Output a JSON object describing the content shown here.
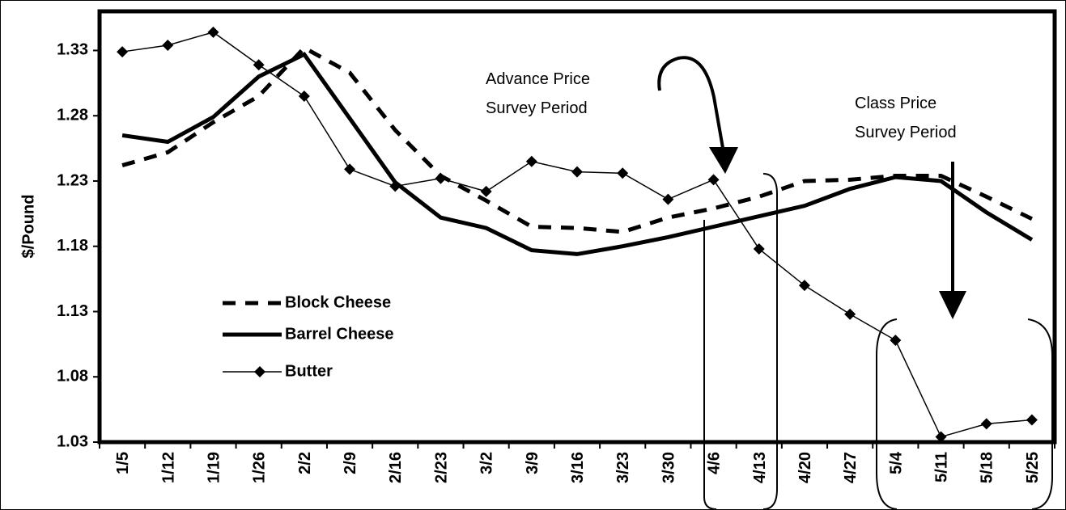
{
  "chart_data": {
    "type": "line",
    "y_label": "$/Pound",
    "categories": [
      "1/5",
      "1/12",
      "1/19",
      "1/26",
      "2/2",
      "2/9",
      "2/16",
      "2/23",
      "3/2",
      "3/9",
      "3/16",
      "3/23",
      "3/30",
      "4/6",
      "4/13",
      "4/20",
      "4/27",
      "5/4",
      "5/11",
      "5/18",
      "5/25"
    ],
    "series": [
      {
        "name": "Block Cheese",
        "color": "#000000",
        "style": "dashed",
        "values": [
          1.242,
          1.252,
          1.275,
          1.295,
          1.332,
          1.313,
          1.269,
          1.234,
          1.215,
          1.195,
          1.194,
          1.191,
          1.202,
          1.209,
          1.218,
          1.23,
          1.231,
          1.234,
          1.234,
          1.218,
          1.201
        ]
      },
      {
        "name": "Barrel Cheese",
        "color": "#000000",
        "style": "solid",
        "values": [
          1.265,
          1.26,
          1.279,
          1.31,
          1.327,
          1.278,
          1.229,
          1.202,
          1.194,
          1.177,
          1.174,
          1.18,
          1.187,
          1.195,
          1.203,
          1.211,
          1.224,
          1.233,
          1.23,
          1.206,
          1.185
        ]
      },
      {
        "name": "Butter",
        "color": "#000000",
        "style": "markers",
        "values": [
          1.329,
          1.334,
          1.344,
          1.319,
          1.295,
          1.239,
          1.226,
          1.232,
          1.222,
          1.245,
          1.237,
          1.236,
          1.216,
          1.231,
          1.178,
          1.15,
          1.128,
          1.108,
          1.034,
          1.044,
          1.047
        ]
      }
    ],
    "ylim": [
      1.03,
      1.36
    ],
    "yticks": [
      1.03,
      1.08,
      1.13,
      1.18,
      1.23,
      1.28,
      1.33
    ],
    "annotations": [
      {
        "lines": [
          "Advance Price",
          "Survey Period"
        ]
      },
      {
        "lines": [
          "Class Price",
          "Survey Period"
        ]
      }
    ],
    "legend": "lower left"
  }
}
